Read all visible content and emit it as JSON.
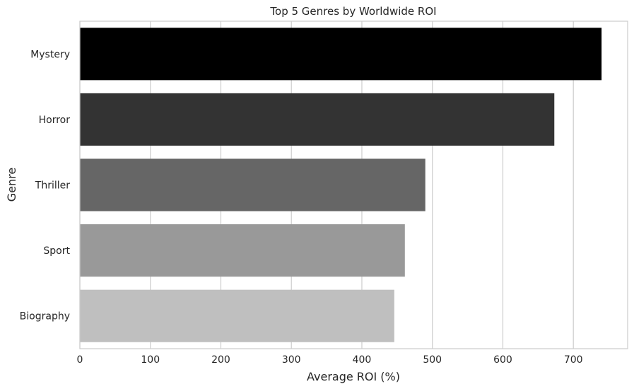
{
  "chart_data": {
    "type": "bar",
    "orientation": "horizontal",
    "title": "Top 5 Genres by Worldwide ROI",
    "xlabel": "Average ROI (%)",
    "ylabel": "Genre",
    "categories": [
      "Mystery",
      "Horror",
      "Thriller",
      "Sport",
      "Biography"
    ],
    "values": [
      740,
      673,
      490,
      461,
      446
    ],
    "colors": [
      "#000000",
      "#333333",
      "#666666",
      "#999999",
      "#bfbfbf"
    ],
    "xlim": [
      0,
      777
    ],
    "xticks": [
      0,
      100,
      200,
      300,
      400,
      500,
      600,
      700
    ],
    "xtick_labels": [
      "0",
      "100",
      "200",
      "300",
      "400",
      "500",
      "600",
      "700"
    ],
    "grid": "vertical",
    "grid_color": "#cccccc",
    "spine_color": "#cccccc"
  }
}
